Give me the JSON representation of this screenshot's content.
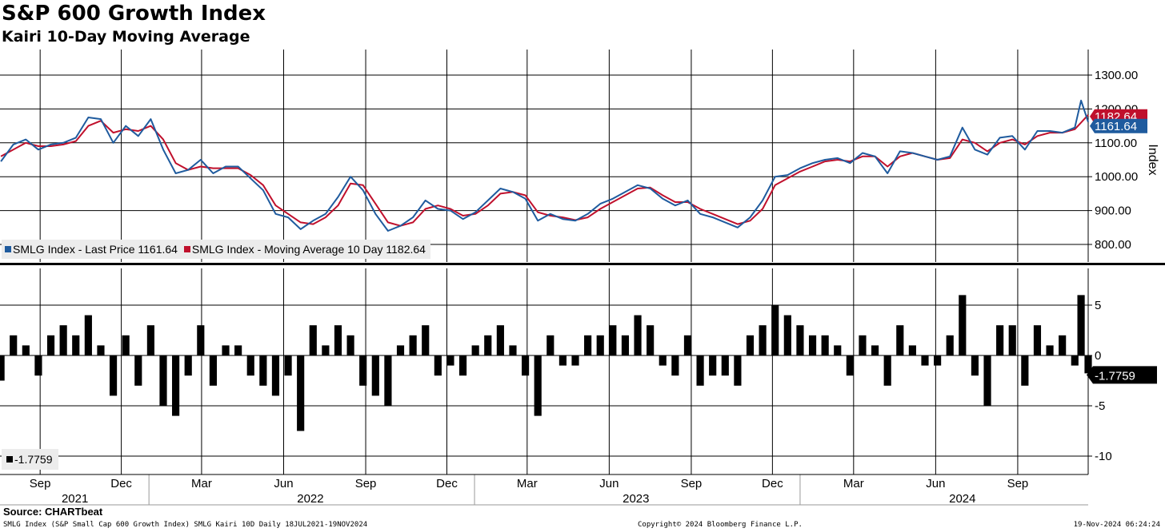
{
  "title": "S&P 600 Growth Index",
  "subtitle": "Kairi 10-Day Moving Average",
  "source": "Source: CHARTbeat",
  "footer": {
    "description": "SMLG Index (S&P Small Cap 600 Growth Index) SMLG Kairi 10D  Daily 18JUL2021-19NOV2024",
    "copyright": "Copyright© 2024 Bloomberg Finance L.P.",
    "timestamp": "19-Nov-2024 06:24:24"
  },
  "colors": {
    "last_price": "#1f5b9e",
    "moving_average": "#c0102c",
    "kairi": "#000000",
    "grid": "#000000"
  },
  "chart_data": [
    {
      "type": "line",
      "ylabel": "Index",
      "ylim": [
        760,
        1320
      ],
      "yticks": [
        800,
        900,
        1000,
        1100,
        1200,
        1300
      ],
      "ytick_labels": [
        "800.00",
        "900.00",
        "1000.00",
        "1100.00",
        "1200.00",
        "1300.00"
      ],
      "x_range": [
        "2021-07-18",
        "2024-11-19"
      ],
      "legend": [
        "SMLG Index - Last Price 1161.64",
        "SMLG Index - Moving Average 10 Day 1182.64"
      ],
      "legend_placement": "bottom-left",
      "grid": true,
      "last_value_labels": [
        "1182.64",
        "1161.64"
      ],
      "series": [
        {
          "name": "SMLG Index - Last Price",
          "x": [
            "2021-07-19",
            "2021-08-02",
            "2021-08-16",
            "2021-08-30",
            "2021-09-13",
            "2021-09-27",
            "2021-10-11",
            "2021-10-25",
            "2021-11-08",
            "2021-11-22",
            "2021-12-06",
            "2021-12-20",
            "2022-01-03",
            "2022-01-17",
            "2022-01-31",
            "2022-02-14",
            "2022-02-28",
            "2022-03-14",
            "2022-03-28",
            "2022-04-11",
            "2022-04-25",
            "2022-05-09",
            "2022-05-23",
            "2022-06-06",
            "2022-06-20",
            "2022-07-04",
            "2022-07-18",
            "2022-08-01",
            "2022-08-15",
            "2022-08-29",
            "2022-09-12",
            "2022-09-26",
            "2022-10-10",
            "2022-10-24",
            "2022-11-07",
            "2022-11-21",
            "2022-12-05",
            "2022-12-19",
            "2023-01-02",
            "2023-01-16",
            "2023-01-30",
            "2023-02-13",
            "2023-02-27",
            "2023-03-13",
            "2023-03-27",
            "2023-04-10",
            "2023-04-24",
            "2023-05-08",
            "2023-05-22",
            "2023-06-05",
            "2023-06-19",
            "2023-07-03",
            "2023-07-17",
            "2023-07-31",
            "2023-08-14",
            "2023-08-28",
            "2023-09-11",
            "2023-09-25",
            "2023-10-09",
            "2023-10-23",
            "2023-11-06",
            "2023-11-20",
            "2023-12-04",
            "2023-12-18",
            "2024-01-01",
            "2024-01-15",
            "2024-01-29",
            "2024-02-12",
            "2024-02-26",
            "2024-03-11",
            "2024-03-25",
            "2024-04-08",
            "2024-04-22",
            "2024-05-06",
            "2024-05-20",
            "2024-06-03",
            "2024-06-17",
            "2024-07-01",
            "2024-07-15",
            "2024-07-29",
            "2024-08-12",
            "2024-08-26",
            "2024-09-09",
            "2024-09-23",
            "2024-10-07",
            "2024-10-21",
            "2024-11-04",
            "2024-11-11",
            "2024-11-19"
          ],
          "values": [
            1045,
            1095,
            1110,
            1080,
            1095,
            1100,
            1115,
            1175,
            1170,
            1100,
            1150,
            1120,
            1170,
            1080,
            1010,
            1020,
            1050,
            1010,
            1030,
            1030,
            995,
            960,
            890,
            880,
            845,
            870,
            890,
            940,
            1000,
            960,
            890,
            840,
            855,
            880,
            930,
            905,
            900,
            875,
            895,
            930,
            965,
            955,
            935,
            870,
            890,
            875,
            870,
            890,
            920,
            935,
            955,
            975,
            965,
            935,
            915,
            930,
            890,
            880,
            865,
            850,
            880,
            930,
            1000,
            1005,
            1025,
            1040,
            1050,
            1055,
            1040,
            1070,
            1060,
            1010,
            1075,
            1070,
            1060,
            1050,
            1060,
            1145,
            1080,
            1065,
            1115,
            1120,
            1080,
            1135,
            1135,
            1130,
            1145,
            1225,
            1161.64
          ]
        },
        {
          "name": "SMLG Index - Moving Average 10 Day",
          "x": [
            "2021-07-19",
            "2021-08-02",
            "2021-08-16",
            "2021-08-30",
            "2021-09-13",
            "2021-09-27",
            "2021-10-11",
            "2021-10-25",
            "2021-11-08",
            "2021-11-22",
            "2021-12-06",
            "2021-12-20",
            "2022-01-03",
            "2022-01-17",
            "2022-01-31",
            "2022-02-14",
            "2022-02-28",
            "2022-03-14",
            "2022-03-28",
            "2022-04-11",
            "2022-04-25",
            "2022-05-09",
            "2022-05-23",
            "2022-06-06",
            "2022-06-20",
            "2022-07-04",
            "2022-07-18",
            "2022-08-01",
            "2022-08-15",
            "2022-08-29",
            "2022-09-12",
            "2022-09-26",
            "2022-10-10",
            "2022-10-24",
            "2022-11-07",
            "2022-11-21",
            "2022-12-05",
            "2022-12-19",
            "2023-01-02",
            "2023-01-16",
            "2023-01-30",
            "2023-02-13",
            "2023-02-27",
            "2023-03-13",
            "2023-03-27",
            "2023-04-10",
            "2023-04-24",
            "2023-05-08",
            "2023-05-22",
            "2023-06-05",
            "2023-06-19",
            "2023-07-03",
            "2023-07-17",
            "2023-07-31",
            "2023-08-14",
            "2023-08-28",
            "2023-09-11",
            "2023-09-25",
            "2023-10-09",
            "2023-10-23",
            "2023-11-06",
            "2023-11-20",
            "2023-12-04",
            "2023-12-18",
            "2024-01-01",
            "2024-01-15",
            "2024-01-29",
            "2024-02-12",
            "2024-02-26",
            "2024-03-11",
            "2024-03-25",
            "2024-04-08",
            "2024-04-22",
            "2024-05-06",
            "2024-05-20",
            "2024-06-03",
            "2024-06-17",
            "2024-07-01",
            "2024-07-15",
            "2024-07-29",
            "2024-08-12",
            "2024-08-26",
            "2024-09-09",
            "2024-09-23",
            "2024-10-07",
            "2024-10-21",
            "2024-11-04",
            "2024-11-11",
            "2024-11-19"
          ],
          "values": [
            1060,
            1080,
            1100,
            1090,
            1090,
            1095,
            1105,
            1150,
            1165,
            1130,
            1140,
            1135,
            1150,
            1110,
            1040,
            1020,
            1030,
            1025,
            1025,
            1025,
            1005,
            975,
            915,
            890,
            865,
            860,
            880,
            915,
            980,
            975,
            920,
            865,
            855,
            865,
            905,
            915,
            905,
            885,
            890,
            915,
            950,
            955,
            945,
            895,
            885,
            880,
            872,
            880,
            905,
            925,
            945,
            965,
            968,
            945,
            925,
            925,
            905,
            890,
            875,
            860,
            870,
            905,
            975,
            995,
            1015,
            1030,
            1045,
            1050,
            1045,
            1060,
            1060,
            1030,
            1060,
            1070,
            1060,
            1050,
            1055,
            1110,
            1100,
            1075,
            1100,
            1110,
            1095,
            1120,
            1130,
            1130,
            1140,
            1160,
            1182.64
          ]
        }
      ]
    },
    {
      "type": "bar",
      "name": "SMLG Kairi 10D",
      "ylim": [
        -12,
        8.5
      ],
      "yticks": [
        -10,
        -5,
        0,
        5
      ],
      "ytick_labels": [
        "-10",
        "-5",
        "0",
        "5"
      ],
      "legend": [
        "-1.7759"
      ],
      "legend_placement": "bottom-left",
      "last_value_label": "-1.7759",
      "x": [
        "2021-07-19",
        "2021-08-02",
        "2021-08-16",
        "2021-08-30",
        "2021-09-13",
        "2021-09-27",
        "2021-10-11",
        "2021-10-25",
        "2021-11-08",
        "2021-11-22",
        "2021-12-06",
        "2021-12-20",
        "2022-01-03",
        "2022-01-17",
        "2022-01-31",
        "2022-02-14",
        "2022-02-28",
        "2022-03-14",
        "2022-03-28",
        "2022-04-11",
        "2022-04-25",
        "2022-05-09",
        "2022-05-23",
        "2022-06-06",
        "2022-06-20",
        "2022-07-04",
        "2022-07-18",
        "2022-08-01",
        "2022-08-15",
        "2022-08-29",
        "2022-09-12",
        "2022-09-26",
        "2022-10-10",
        "2022-10-24",
        "2022-11-07",
        "2022-11-21",
        "2022-12-05",
        "2022-12-19",
        "2023-01-02",
        "2023-01-16",
        "2023-01-30",
        "2023-02-13",
        "2023-02-27",
        "2023-03-13",
        "2023-03-27",
        "2023-04-10",
        "2023-04-24",
        "2023-05-08",
        "2023-05-22",
        "2023-06-05",
        "2023-06-19",
        "2023-07-03",
        "2023-07-17",
        "2023-07-31",
        "2023-08-14",
        "2023-08-28",
        "2023-09-11",
        "2023-09-25",
        "2023-10-09",
        "2023-10-23",
        "2023-11-06",
        "2023-11-20",
        "2023-12-04",
        "2023-12-18",
        "2024-01-01",
        "2024-01-15",
        "2024-01-29",
        "2024-02-12",
        "2024-02-26",
        "2024-03-11",
        "2024-03-25",
        "2024-04-08",
        "2024-04-22",
        "2024-05-06",
        "2024-05-20",
        "2024-06-03",
        "2024-06-17",
        "2024-07-01",
        "2024-07-15",
        "2024-07-29",
        "2024-08-12",
        "2024-08-26",
        "2024-09-09",
        "2024-09-23",
        "2024-10-07",
        "2024-10-21",
        "2024-11-04",
        "2024-11-11",
        "2024-11-19"
      ],
      "values": [
        -2.5,
        2,
        1,
        -2,
        2,
        3,
        2,
        4,
        1,
        -4,
        2,
        -3,
        3,
        -5,
        -6,
        -2,
        3,
        -3,
        1,
        1,
        -2,
        -3,
        -4,
        -2,
        -7.5,
        3,
        1,
        3,
        2,
        -3,
        -4,
        -5,
        1,
        2,
        3,
        -2,
        -1,
        -2,
        1,
        2,
        3,
        1,
        -2,
        -6,
        2,
        -1,
        -1,
        2,
        2,
        3,
        2,
        4,
        3,
        -1,
        -2,
        2,
        -3,
        -2,
        -2,
        -3,
        2,
        3,
        5,
        4,
        3,
        2,
        2,
        1,
        -2,
        2,
        1,
        -3,
        3,
        1,
        -1,
        -1,
        2,
        6,
        -2,
        -5,
        3,
        3,
        -3,
        3,
        1,
        2,
        -1,
        6,
        -1.7759
      ]
    }
  ],
  "x_axis": {
    "month_labels": [
      "Sep",
      "Dec",
      "Mar",
      "Jun",
      "Sep",
      "Dec",
      "Mar",
      "Jun",
      "Sep",
      "Dec",
      "Mar",
      "Jun",
      "Sep"
    ],
    "year_labels": [
      "2021",
      "2022",
      "2023",
      "2024"
    ]
  }
}
